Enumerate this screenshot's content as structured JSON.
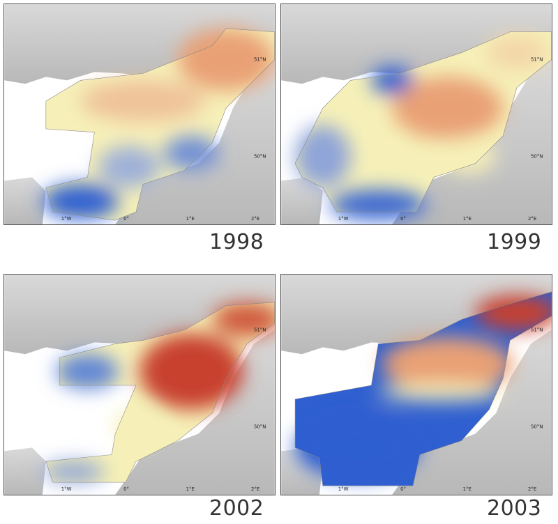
{
  "panels": [
    {
      "year": "1998",
      "pattern": "warm-northeast-cool-southwest"
    },
    {
      "year": "1999",
      "pattern": "warm-centre-cool-margins"
    },
    {
      "year": "2002",
      "pattern": "hot-east-cool-west"
    },
    {
      "year": "2003",
      "pattern": "hot-north-cold-south"
    }
  ],
  "axis_labels": {
    "lat_51": "51°N",
    "lat_50": "50°N",
    "lon_1w": "1°W",
    "lon_0": "0°",
    "lon_1e": "1°E",
    "lon_2e": "2°E"
  },
  "colors": {
    "cold": "#2f5fd0",
    "cool": "#8fa4d8",
    "neutral": "#f6f0b8",
    "warm": "#e9a074",
    "hot": "#c8402e",
    "land": "#cfcfcf",
    "land_dark": "#a9a9a9"
  }
}
